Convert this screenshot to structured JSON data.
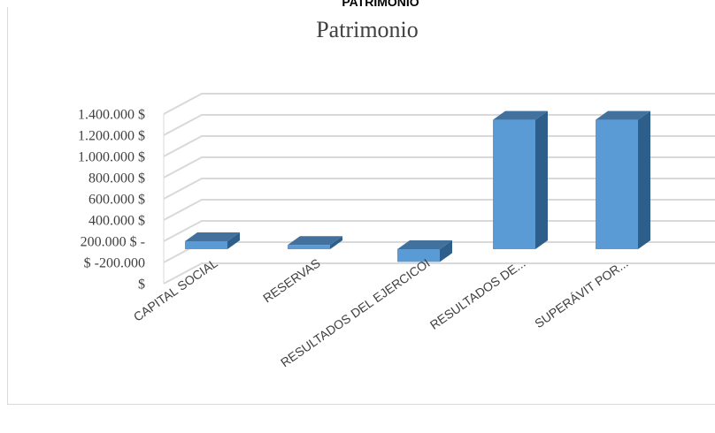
{
  "page": {
    "heading": "PATRIMONIO"
  },
  "chart_data": {
    "type": "bar",
    "title": "Patrimonio",
    "xlabel": "",
    "ylabel": "",
    "categories": [
      "CAPITAL SOCIAL",
      "RESERVAS",
      "RESULTADOS DEL EJERCICOI",
      "RESULTADOS DE...",
      "SUPERÁVIT POR..."
    ],
    "values": [
      75000,
      40000,
      -120000,
      1220000,
      1220000
    ],
    "y_tick_labels": [
      "$",
      "$ -200.000",
      "200.000 $ -",
      "400.000 $",
      "600.000 $",
      "800.000 $",
      "1.000.000 $",
      "1.200.000 $",
      "1.400.000 $"
    ],
    "ylim": [
      -200000,
      1400000
    ],
    "grid": true,
    "legend": "none",
    "colors": {
      "bar_front": "#5b9bd5",
      "bar_side": "#2e5f8a",
      "bar_top": "#41719c",
      "grid": "#d9d9d9"
    }
  }
}
